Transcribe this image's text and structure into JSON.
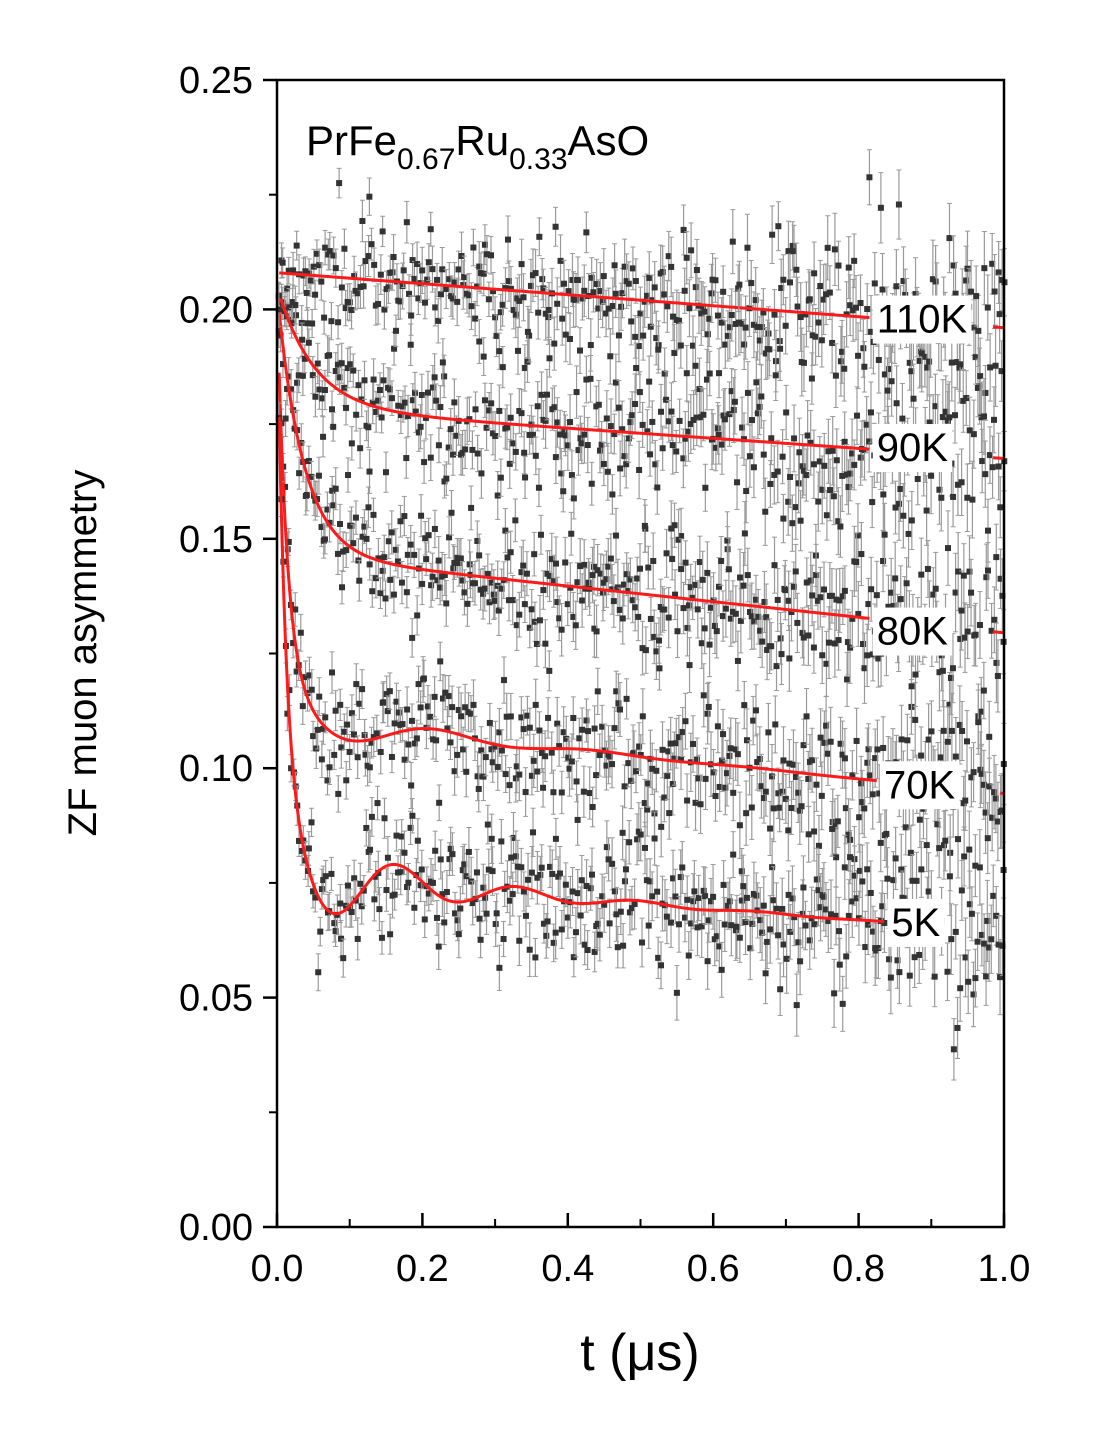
{
  "chart_data": {
    "type": "scatter",
    "title": "",
    "annotation": {
      "base": "PrFe",
      "sub1": "0.67",
      "mid": "Ru",
      "sub2": "0.33",
      "tail": "AsO"
    },
    "xlabel": "t (μs)",
    "ylabel": "ZF muon asymmetry",
    "xlim": [
      0.0,
      1.0
    ],
    "ylim": [
      0.0,
      0.25
    ],
    "xticks": [
      "0.0",
      "0.2",
      "0.4",
      "0.6",
      "0.8",
      "1.0"
    ],
    "yticks": [
      "0.00",
      "0.05",
      "0.10",
      "0.15",
      "0.20",
      "0.25"
    ],
    "colors": {
      "fit": "#ff1a1a",
      "data": "#333333",
      "errorbar": "#9a9a9a"
    },
    "series": [
      {
        "name": "110K",
        "label_x": 0.86,
        "label_y": 0.198,
        "fit": {
          "start": 0.212,
          "plateau": 0.208,
          "fastRate": 0,
          "osc": 0,
          "slope": -0.012
        },
        "noise": 0.0055,
        "seed": 11
      },
      {
        "name": "90K",
        "label_x": 0.86,
        "label_y": 0.17,
        "fit": {
          "start": 0.205,
          "plateau": 0.1785,
          "fastRate": 20,
          "osc": 0,
          "slope": -0.011
        },
        "noise": 0.0065,
        "seed": 23
      },
      {
        "name": "80K",
        "label_x": 0.86,
        "label_y": 0.13,
        "fit": {
          "start": 0.204,
          "plateau": 0.1465,
          "fastRate": 28,
          "osc": 0,
          "slope": -0.017
        },
        "noise": 0.0055,
        "seed": 37
      },
      {
        "name": "70K",
        "label_x": 0.87,
        "label_y": 0.0965,
        "fit": {
          "start": 0.204,
          "plateau": 0.1105,
          "fastRate": 75,
          "osc": 0.0055,
          "oscFreq": 4.5,
          "oscDamp": 6,
          "slope": -0.016
        },
        "noise": 0.0065,
        "seed": 53
      },
      {
        "name": "5K",
        "label_x": 0.88,
        "label_y": 0.0665,
        "fit": {
          "start": 0.204,
          "plateau": 0.0765,
          "fastRate": 90,
          "osc": 0.012,
          "oscFreq": 6.0,
          "oscDamp": 6,
          "slope": -0.012
        },
        "noise": 0.0055,
        "seed": 71
      }
    ]
  }
}
